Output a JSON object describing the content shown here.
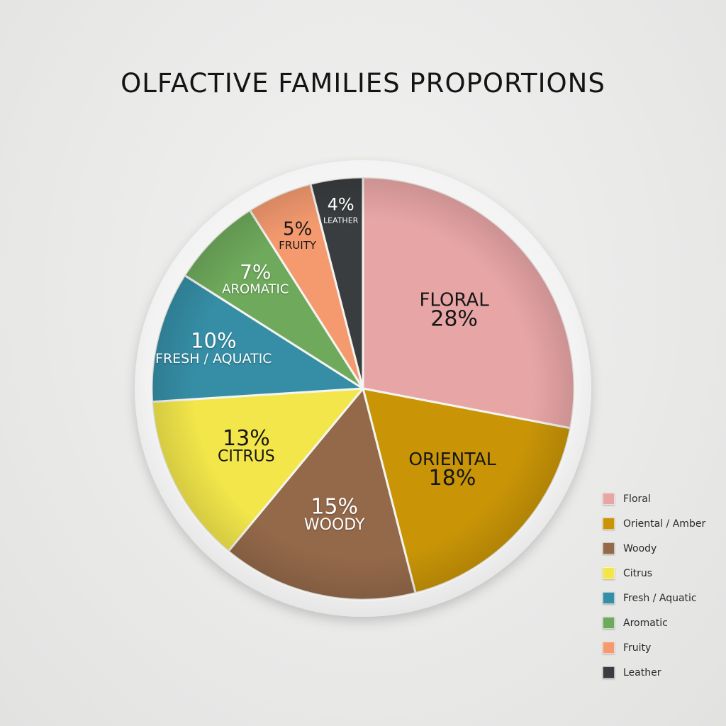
{
  "chart_data": {
    "type": "pie",
    "title": "OLFACTIVE FAMILIES PROPORTIONS",
    "slices": [
      {
        "name": "FLORAL",
        "value": 28,
        "label": "28%",
        "color": "#e8a5a6"
      },
      {
        "name": "ORIENTAL",
        "value": 18,
        "label": "18%",
        "color": "#c99507"
      },
      {
        "name": "WOODY",
        "value": 15,
        "label": "15%",
        "color": "#94694a"
      },
      {
        "name": "CITRUS",
        "value": 13,
        "label": "13%",
        "color": "#f2e64a"
      },
      {
        "name": "FRESH / AQUATIC",
        "value": 10,
        "label": "10%",
        "color": "#358ea6"
      },
      {
        "name": "AROMATIC",
        "value": 7,
        "label": "7%",
        "color": "#6faa5c"
      },
      {
        "name": "FRUITY",
        "value": 5,
        "label": "5%",
        "color": "#f59a6f"
      },
      {
        "name": "LEATHER",
        "value": 4,
        "label": "4%",
        "color": "#3a3d3f"
      }
    ],
    "legend": {
      "placement": "bottom-right",
      "items": [
        {
          "label": "Floral",
          "color": "#e8a5a6"
        },
        {
          "label": "Oriental / Amber",
          "color": "#c99507"
        },
        {
          "label": "Woody",
          "color": "#94694a"
        },
        {
          "label": "Citrus",
          "color": "#f2e64a"
        },
        {
          "label": "Fresh / Aquatic",
          "color": "#358ea6"
        },
        {
          "label": "Aromatic",
          "color": "#6faa5c"
        },
        {
          "label": "Fruity",
          "color": "#f59a6f"
        },
        {
          "label": "Leather",
          "color": "#3a3d3f"
        }
      ]
    }
  }
}
